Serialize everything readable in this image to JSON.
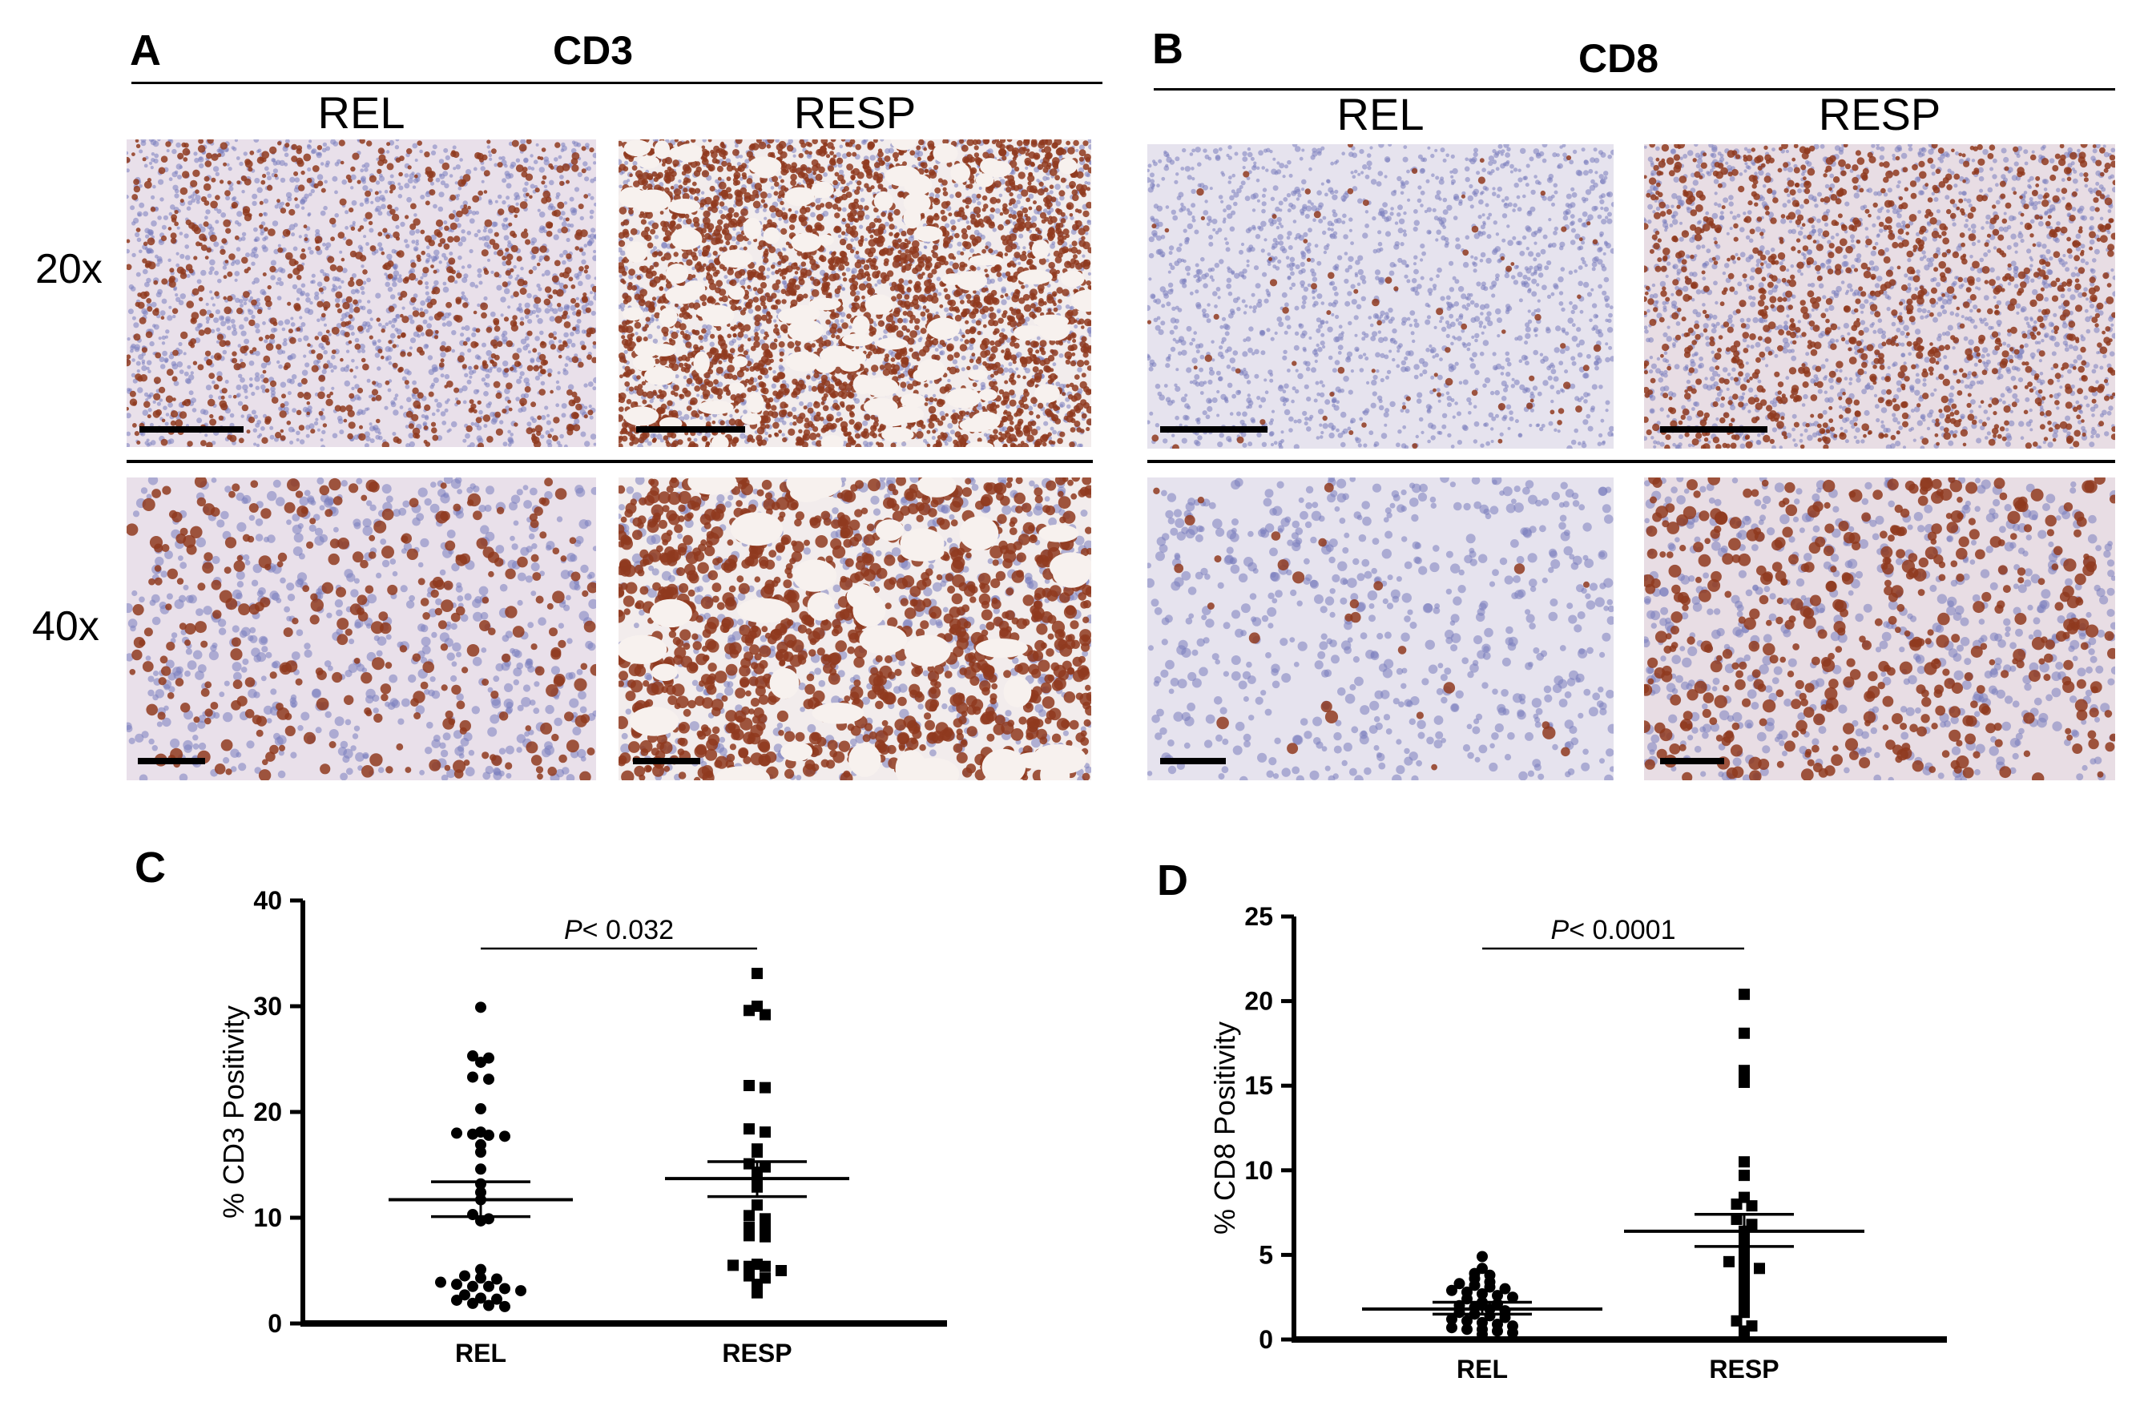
{
  "panels": {
    "A": {
      "letter": "A",
      "marker": "CD3",
      "columns": [
        "REL",
        "RESP"
      ],
      "rows": [
        "20x",
        "40x"
      ]
    },
    "B": {
      "letter": "B",
      "marker": "CD8",
      "columns": [
        "REL",
        "RESP"
      ]
    },
    "C": {
      "letter": "C"
    },
    "D": {
      "letter": "D"
    }
  },
  "colors": {
    "hematoxylin": "#7a7dbd",
    "dab": "#8f3a1e",
    "background": "#f2ecec",
    "points": "#000000"
  },
  "chart_data": [
    {
      "panel": "C",
      "type": "scatter",
      "title": "",
      "xlabel": "",
      "ylabel": "% CD3 Positivity",
      "categories": [
        "REL",
        "RESP"
      ],
      "ylim": [
        0,
        40
      ],
      "yticks": [
        0,
        10,
        20,
        30,
        40
      ],
      "grid": false,
      "annotation": {
        "p_label": "P",
        "p_value": "< 0.032"
      },
      "series": [
        {
          "category": "REL",
          "marker": "circle",
          "mean": 11.7,
          "sem_upper": 13.4,
          "sem_lower": 10.1,
          "points": [
            29.9,
            25.3,
            25.1,
            24.7,
            23.3,
            23.1,
            20.3,
            18.1,
            18.0,
            17.9,
            17.8,
            17.7,
            16.9,
            16.2,
            14.6,
            13.2,
            12.4,
            11.7,
            10.3,
            9.9,
            9.7,
            5.1,
            4.5,
            4.3,
            4.2,
            3.9,
            3.7,
            3.5,
            3.5,
            3.3,
            3.1,
            2.7,
            2.4,
            2.3,
            2.2,
            1.9,
            1.7,
            1.6
          ]
        },
        {
          "category": "RESP",
          "marker": "square",
          "mean": 13.7,
          "sem_upper": 15.3,
          "sem_lower": 12.0,
          "points": [
            33.1,
            30.0,
            29.6,
            29.2,
            22.5,
            22.3,
            18.4,
            18.1,
            16.5,
            16.2,
            15.1,
            14.8,
            14.3,
            13.8,
            12.9,
            11.2,
            10.2,
            9.9,
            9.1,
            9.0,
            8.3,
            8.2,
            5.6,
            5.5,
            5.4,
            5.4,
            5.0,
            4.5,
            4.3,
            3.7,
            2.9
          ]
        }
      ]
    },
    {
      "panel": "D",
      "type": "scatter",
      "title": "",
      "xlabel": "",
      "ylabel": "% CD8 Positivity",
      "categories": [
        "REL",
        "RESP"
      ],
      "ylim": [
        0,
        25
      ],
      "yticks": [
        0,
        5,
        10,
        15,
        20,
        25
      ],
      "grid": false,
      "annotation": {
        "p_label": "P",
        "p_value": "< 0.0001"
      },
      "series": [
        {
          "category": "REL",
          "marker": "circle",
          "mean": 1.8,
          "sem_upper": 2.2,
          "sem_lower": 1.5,
          "points": [
            4.9,
            4.2,
            3.9,
            3.8,
            3.6,
            3.4,
            3.3,
            3.2,
            3.1,
            3.0,
            2.9,
            2.8,
            2.7,
            2.6,
            2.5,
            2.4,
            2.2,
            2.1,
            2.0,
            1.9,
            1.8,
            1.7,
            1.6,
            1.5,
            1.4,
            1.3,
            1.2,
            1.1,
            1.0,
            0.9,
            0.8,
            0.7,
            0.6,
            0.6,
            0.5,
            0.4,
            0.3
          ]
        },
        {
          "category": "RESP",
          "marker": "square",
          "mean": 6.4,
          "sem_upper": 7.4,
          "sem_lower": 5.5,
          "points": [
            20.4,
            18.1,
            15.9,
            15.3,
            15.2,
            10.5,
            9.7,
            8.4,
            8.0,
            7.9,
            7.1,
            6.8,
            6.4,
            5.9,
            5.7,
            5.1,
            4.9,
            4.6,
            4.4,
            4.2,
            3.9,
            3.6,
            3.1,
            2.6,
            2.1,
            1.6,
            1.1,
            0.8,
            0.5,
            0.3
          ]
        }
      ]
    }
  ]
}
